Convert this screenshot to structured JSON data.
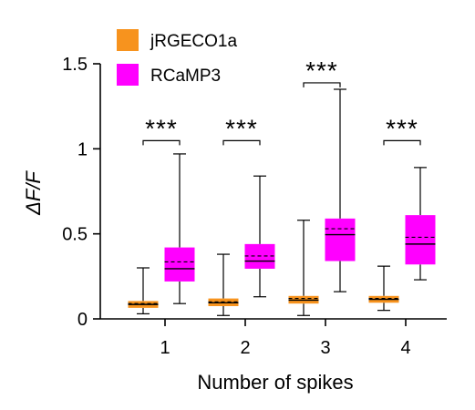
{
  "chart_data": {
    "type": "box",
    "ylabel": "ΔF/F",
    "xlabel": "Number of spikes",
    "ylim": [
      0,
      1.5
    ],
    "yticks": [
      {
        "value": 0,
        "label": "0"
      },
      {
        "value": 0.5,
        "label": "0.5"
      },
      {
        "value": 1,
        "label": "1"
      },
      {
        "value": 1.5,
        "label": "1.5"
      }
    ],
    "categories": [
      "1",
      "2",
      "3",
      "4"
    ],
    "legend_position": "top-left",
    "series": [
      {
        "name": "jRGECO1a",
        "color": "#f7931e",
        "boxes": [
          {
            "min": 0.03,
            "q1": 0.065,
            "median": 0.085,
            "mean": 0.09,
            "q3": 0.105,
            "max": 0.3
          },
          {
            "min": 0.02,
            "q1": 0.075,
            "median": 0.095,
            "mean": 0.1,
            "q3": 0.12,
            "max": 0.38
          },
          {
            "min": 0.02,
            "q1": 0.09,
            "median": 0.11,
            "mean": 0.12,
            "q3": 0.135,
            "max": 0.58
          },
          {
            "min": 0.05,
            "q1": 0.095,
            "median": 0.115,
            "mean": 0.12,
            "q3": 0.135,
            "max": 0.31
          }
        ]
      },
      {
        "name": "RCaMP3",
        "color": "#ff00ff",
        "boxes": [
          {
            "min": 0.09,
            "q1": 0.22,
            "median": 0.295,
            "mean": 0.335,
            "q3": 0.42,
            "max": 0.97
          },
          {
            "min": 0.13,
            "q1": 0.295,
            "median": 0.34,
            "mean": 0.37,
            "q3": 0.44,
            "max": 0.84
          },
          {
            "min": 0.16,
            "q1": 0.34,
            "median": 0.495,
            "mean": 0.53,
            "q3": 0.59,
            "max": 1.35
          },
          {
            "min": 0.23,
            "q1": 0.32,
            "median": 0.44,
            "mean": 0.48,
            "q3": 0.61,
            "max": 0.89
          }
        ]
      }
    ],
    "annotations": [
      {
        "category": "1",
        "text": "***",
        "y": 1.08
      },
      {
        "category": "2",
        "text": "***",
        "y": 1.08
      },
      {
        "category": "3",
        "text": "***",
        "y": 1.42
      },
      {
        "category": "4",
        "text": "***",
        "y": 1.08
      }
    ]
  }
}
